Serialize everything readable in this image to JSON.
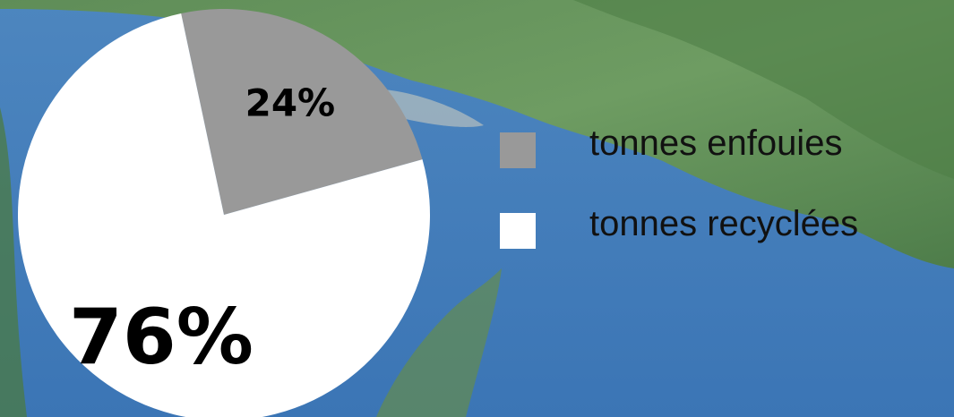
{
  "chart_data": {
    "type": "pie",
    "title": "",
    "slices": [
      {
        "label": "tonnes enfouies",
        "value": 24,
        "display": "24%",
        "color": "#999999"
      },
      {
        "label": "tonnes recyclées",
        "value": 76,
        "display": "76%",
        "color": "#ffffff"
      }
    ],
    "legend": {
      "position": "right",
      "items": [
        {
          "label": "tonnes enfouies",
          "color": "#999999"
        },
        {
          "label": "tonnes recyclées",
          "color": "#ffffff"
        }
      ]
    }
  },
  "background": {
    "description_icon": "lake-mountain-photo"
  }
}
